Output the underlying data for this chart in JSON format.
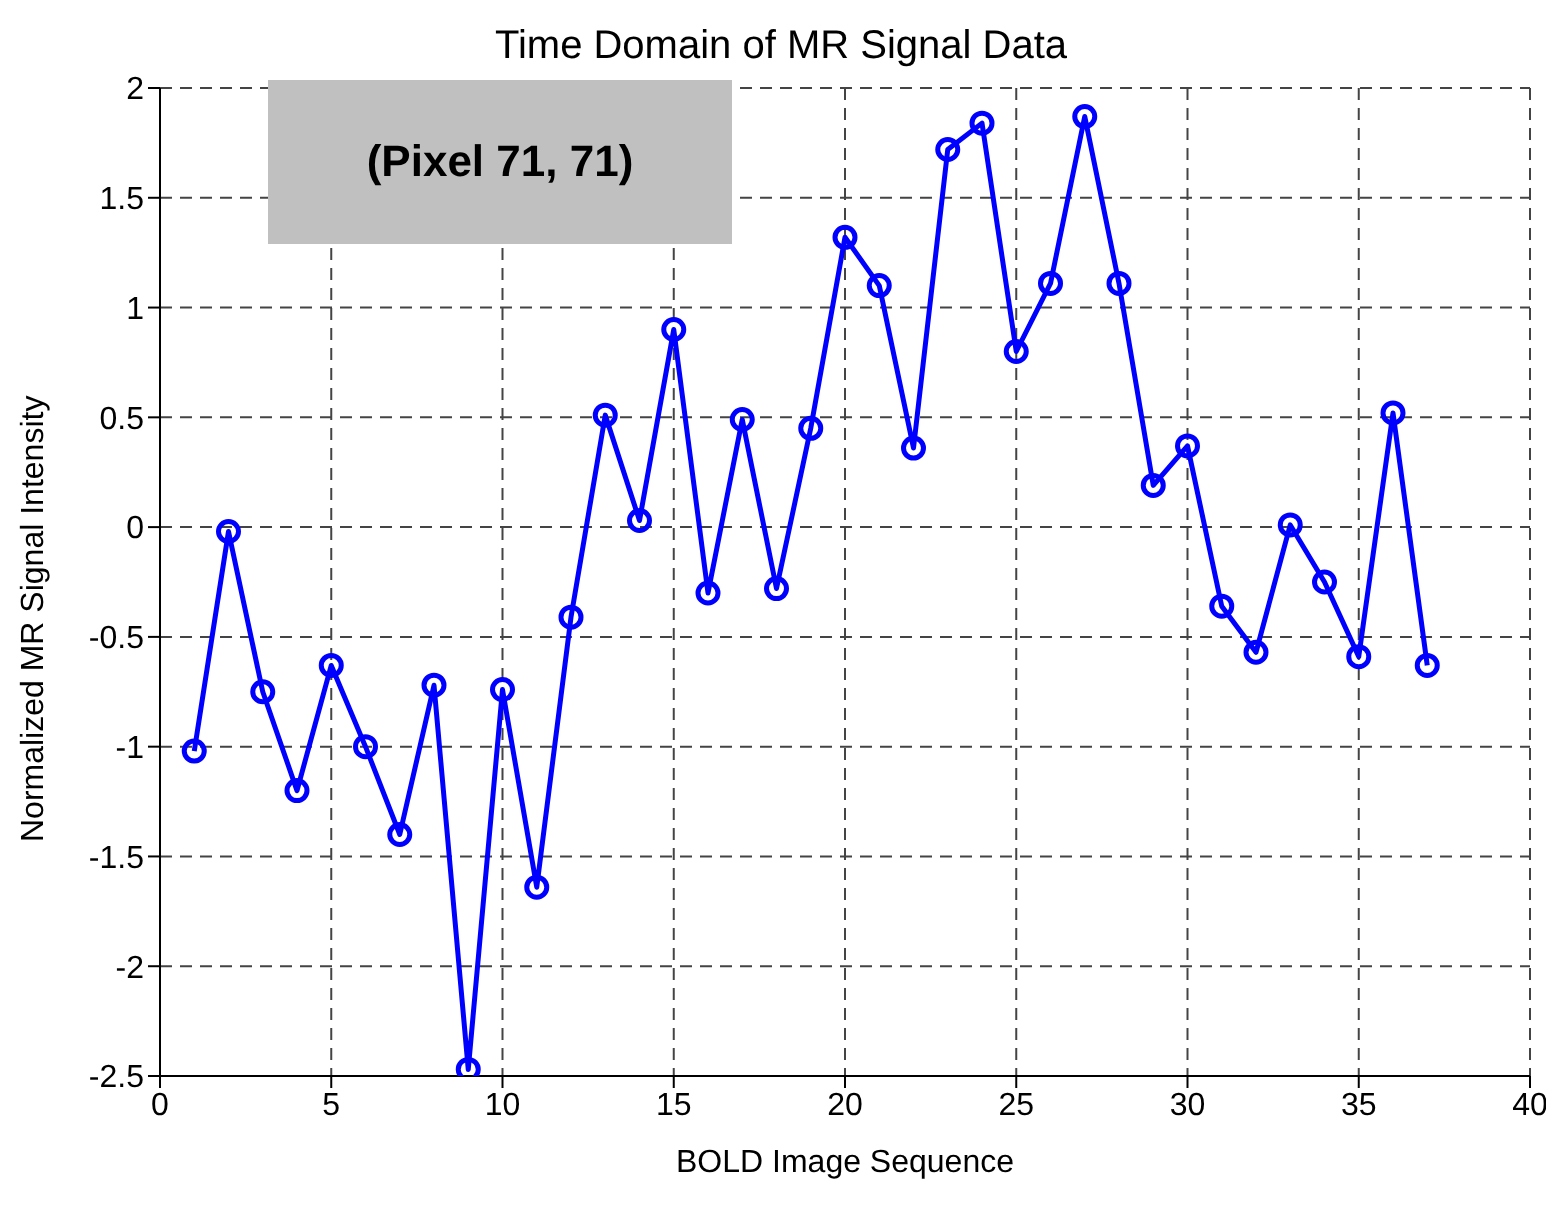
{
  "chart_data": {
    "type": "line",
    "title": "Time Domain of MR Signal Data",
    "xlabel": "BOLD Image Sequence",
    "ylabel": "Normalized MR Signal Intensity",
    "annotations": [
      "(Pixel 71, 71)"
    ],
    "x": [
      1,
      2,
      3,
      4,
      5,
      6,
      7,
      8,
      9,
      10,
      11,
      12,
      13,
      14,
      15,
      16,
      17,
      18,
      19,
      20,
      21,
      22,
      23,
      24,
      25,
      26,
      27,
      28,
      29,
      30,
      31,
      32,
      33,
      34,
      35,
      36,
      37
    ],
    "series": [
      {
        "color": "#0000ff",
        "values": [
          -1.02,
          -0.02,
          -0.75,
          -1.2,
          -0.63,
          -1.0,
          -1.4,
          -0.72,
          -2.47,
          -0.74,
          -1.64,
          -0.41,
          0.51,
          0.03,
          0.9,
          -0.3,
          0.49,
          -0.28,
          0.45,
          1.32,
          1.1,
          0.36,
          1.72,
          1.84,
          0.8,
          1.11,
          1.87,
          1.11,
          0.19,
          0.37,
          -0.36,
          -0.57,
          0.01,
          -0.25,
          -0.59,
          0.52,
          -0.63
        ]
      }
    ],
    "xlim": [
      0,
      40
    ],
    "xticks": [
      0,
      5,
      10,
      15,
      20,
      25,
      30,
      35,
      40
    ],
    "ylim": [
      -2.5,
      2
    ],
    "yticks": [
      -2.5,
      -2,
      -1.5,
      -1,
      -0.5,
      0,
      0.5,
      1,
      1.5,
      2
    ],
    "grid": true,
    "marker": "circle",
    "line_style": "solid",
    "legend": false
  }
}
